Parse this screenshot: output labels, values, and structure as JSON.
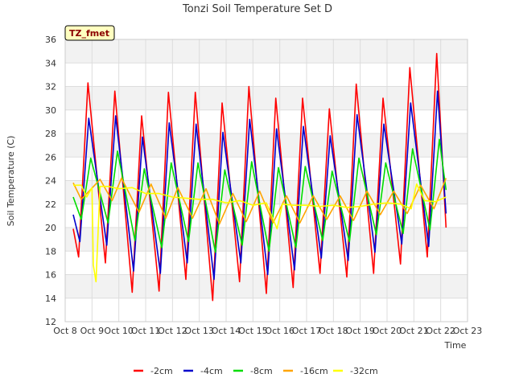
{
  "chart_data": {
    "type": "line",
    "title": "Tonzi Soil Temperature Set D",
    "xlabel": "Time",
    "ylabel": "Soil Temperature (C)",
    "site_badge": "TZ_fmet",
    "xlim": [
      8,
      23
    ],
    "ylim": [
      12,
      36
    ],
    "x_ticks": [
      {
        "value": 8,
        "label": "Oct 8"
      },
      {
        "value": 9,
        "label": "Oct 9"
      },
      {
        "value": 10,
        "label": "Oct 10"
      },
      {
        "value": 11,
        "label": "Oct 11"
      },
      {
        "value": 12,
        "label": "Oct 12"
      },
      {
        "value": 13,
        "label": "Oct 13"
      },
      {
        "value": 14,
        "label": "Oct 14"
      },
      {
        "value": 15,
        "label": "Oct 15"
      },
      {
        "value": 16,
        "label": "Oct 16"
      },
      {
        "value": 17,
        "label": "Oct 17"
      },
      {
        "value": 18,
        "label": "Oct 18"
      },
      {
        "value": 19,
        "label": "Oct 19"
      },
      {
        "value": 20,
        "label": "Oct 20"
      },
      {
        "value": 21,
        "label": "Oct 21"
      },
      {
        "value": 22,
        "label": "Oct 22"
      },
      {
        "value": 23,
        "label": "Oct 23"
      }
    ],
    "y_ticks": [
      12,
      14,
      16,
      18,
      20,
      22,
      24,
      26,
      28,
      30,
      32,
      34,
      36
    ],
    "grid": true,
    "legend_position": "bottom",
    "series": [
      {
        "name": "-2cm",
        "color": "#ff0000",
        "points": [
          [
            8.3,
            19.9
          ],
          [
            8.5,
            17.5
          ],
          [
            8.85,
            32.3
          ],
          [
            9.5,
            17.0
          ],
          [
            9.85,
            31.6
          ],
          [
            10.5,
            14.5
          ],
          [
            10.85,
            29.5
          ],
          [
            11.5,
            14.6
          ],
          [
            11.85,
            31.5
          ],
          [
            12.5,
            15.6
          ],
          [
            12.85,
            31.5
          ],
          [
            13.5,
            13.8
          ],
          [
            13.85,
            30.6
          ],
          [
            14.5,
            15.4
          ],
          [
            14.85,
            32.0
          ],
          [
            15.5,
            14.4
          ],
          [
            15.85,
            31.0
          ],
          [
            16.5,
            14.9
          ],
          [
            16.85,
            31.0
          ],
          [
            17.5,
            16.1
          ],
          [
            17.85,
            30.1
          ],
          [
            18.5,
            15.8
          ],
          [
            18.85,
            32.2
          ],
          [
            19.5,
            16.1
          ],
          [
            19.85,
            31.0
          ],
          [
            20.5,
            16.9
          ],
          [
            20.85,
            33.6
          ],
          [
            21.5,
            17.5
          ],
          [
            21.85,
            34.8
          ],
          [
            22.2,
            20.0
          ]
        ]
      },
      {
        "name": "-4cm",
        "color": "#0000cc",
        "points": [
          [
            8.3,
            21.1
          ],
          [
            8.55,
            18.8
          ],
          [
            8.88,
            29.3
          ],
          [
            9.55,
            18.5
          ],
          [
            9.88,
            29.5
          ],
          [
            10.55,
            16.3
          ],
          [
            10.88,
            27.7
          ],
          [
            11.55,
            16.1
          ],
          [
            11.88,
            28.9
          ],
          [
            12.55,
            17.0
          ],
          [
            12.88,
            28.8
          ],
          [
            13.55,
            15.6
          ],
          [
            13.88,
            28.1
          ],
          [
            14.55,
            17.0
          ],
          [
            14.88,
            29.2
          ],
          [
            15.55,
            16.0
          ],
          [
            15.88,
            28.4
          ],
          [
            16.55,
            16.4
          ],
          [
            16.88,
            28.6
          ],
          [
            17.55,
            17.4
          ],
          [
            17.88,
            27.8
          ],
          [
            18.55,
            17.2
          ],
          [
            18.88,
            29.6
          ],
          [
            19.55,
            17.9
          ],
          [
            19.88,
            28.8
          ],
          [
            20.55,
            18.6
          ],
          [
            20.88,
            30.6
          ],
          [
            21.55,
            18.4
          ],
          [
            21.88,
            31.6
          ],
          [
            22.2,
            21.2
          ]
        ]
      },
      {
        "name": "-8cm",
        "color": "#00dd00",
        "points": [
          [
            8.3,
            22.6
          ],
          [
            8.6,
            20.7
          ],
          [
            8.95,
            25.9
          ],
          [
            9.6,
            20.4
          ],
          [
            9.95,
            26.5
          ],
          [
            10.6,
            18.9
          ],
          [
            10.95,
            25.0
          ],
          [
            11.6,
            18.3
          ],
          [
            11.95,
            25.5
          ],
          [
            12.6,
            18.8
          ],
          [
            12.95,
            25.5
          ],
          [
            13.6,
            17.9
          ],
          [
            13.95,
            24.9
          ],
          [
            14.6,
            18.5
          ],
          [
            14.95,
            25.6
          ],
          [
            15.6,
            18.0
          ],
          [
            15.95,
            25.1
          ],
          [
            16.6,
            18.3
          ],
          [
            16.95,
            25.2
          ],
          [
            17.6,
            18.9
          ],
          [
            17.95,
            24.8
          ],
          [
            18.6,
            18.8
          ],
          [
            18.95,
            25.9
          ],
          [
            19.6,
            19.4
          ],
          [
            19.95,
            25.5
          ],
          [
            20.6,
            19.5
          ],
          [
            20.95,
            26.7
          ],
          [
            21.6,
            19.8
          ],
          [
            21.95,
            27.5
          ],
          [
            22.2,
            23.2
          ]
        ]
      },
      {
        "name": "-16cm",
        "color": "#ffa500",
        "points": [
          [
            8.3,
            23.8
          ],
          [
            8.6,
            22.4
          ],
          [
            9.1,
            23.6
          ],
          [
            9.3,
            24.1
          ],
          [
            9.75,
            22.3
          ],
          [
            10.1,
            24.2
          ],
          [
            10.75,
            21.3
          ],
          [
            11.2,
            23.7
          ],
          [
            11.75,
            20.8
          ],
          [
            12.2,
            23.4
          ],
          [
            12.75,
            20.8
          ],
          [
            13.25,
            23.3
          ],
          [
            13.75,
            20.3
          ],
          [
            14.25,
            22.9
          ],
          [
            14.75,
            20.5
          ],
          [
            15.25,
            23.1
          ],
          [
            15.75,
            20.4
          ],
          [
            16.25,
            22.7
          ],
          [
            16.75,
            20.4
          ],
          [
            17.25,
            22.7
          ],
          [
            17.75,
            20.7
          ],
          [
            18.25,
            22.7
          ],
          [
            18.75,
            20.6
          ],
          [
            19.25,
            23.1
          ],
          [
            19.75,
            21.1
          ],
          [
            20.25,
            23.1
          ],
          [
            20.75,
            21.2
          ],
          [
            21.25,
            23.6
          ],
          [
            21.75,
            21.6
          ],
          [
            22.2,
            24.2
          ]
        ]
      },
      {
        "name": "-32cm",
        "color": "#ffff00",
        "points": [
          [
            8.3,
            23.6
          ],
          [
            8.6,
            23.6
          ],
          [
            8.8,
            22.6
          ],
          [
            9.0,
            23.4
          ],
          [
            9.05,
            16.8
          ],
          [
            9.15,
            15.4
          ],
          [
            9.3,
            23.5
          ],
          [
            9.6,
            23.5
          ],
          [
            10.0,
            23.3
          ],
          [
            10.5,
            23.4
          ],
          [
            11.0,
            22.9
          ],
          [
            11.5,
            22.9
          ],
          [
            12.0,
            22.6
          ],
          [
            12.5,
            22.5
          ],
          [
            13.0,
            22.4
          ],
          [
            13.5,
            22.4
          ],
          [
            14.0,
            22.1
          ],
          [
            14.5,
            22.3
          ],
          [
            15.0,
            21.9
          ],
          [
            15.5,
            22.1
          ],
          [
            15.9,
            19.9
          ],
          [
            16.1,
            22.0
          ],
          [
            16.5,
            21.9
          ],
          [
            17.0,
            21.9
          ],
          [
            17.5,
            21.8
          ],
          [
            18.0,
            21.9
          ],
          [
            18.5,
            21.7
          ],
          [
            19.0,
            21.8
          ],
          [
            19.5,
            22.0
          ],
          [
            20.0,
            22.1
          ],
          [
            20.5,
            22.0
          ],
          [
            20.9,
            21.6
          ],
          [
            21.1,
            23.7
          ],
          [
            21.4,
            22.3
          ],
          [
            21.8,
            22.2
          ],
          [
            22.2,
            22.6
          ]
        ]
      }
    ]
  }
}
